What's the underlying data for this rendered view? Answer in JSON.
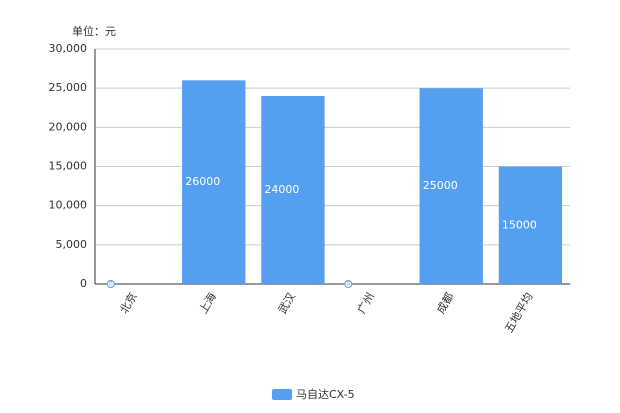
{
  "chart_data": {
    "type": "bar",
    "unit_label": "单位：元",
    "categories": [
      "北京",
      "上海",
      "武汉",
      "广州",
      "成都",
      "五地平均"
    ],
    "series": [
      {
        "name": "马自达CX-5",
        "color": "#549ff0",
        "values": [
          0,
          26000,
          24000,
          0,
          25000,
          15000
        ]
      }
    ],
    "ylim": [
      0,
      30000
    ],
    "yticks": [
      0,
      {
        "value": 5000,
        "label": "5,000"
      },
      {
        "value": 10000,
        "label": "10,000"
      },
      {
        "value": 15000,
        "label": "15,000"
      },
      {
        "value": 20000,
        "label": "20,000"
      },
      {
        "value": 25000,
        "label": "25,000"
      },
      {
        "value": 30000,
        "label": "30,000"
      }
    ],
    "grid": true,
    "legend": "bottom"
  }
}
